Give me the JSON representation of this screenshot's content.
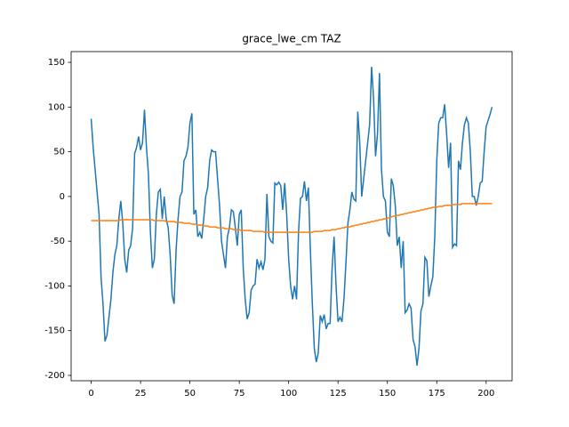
{
  "chart_data": {
    "type": "line",
    "title": "grace_lwe_cm TAZ",
    "x": [
      0,
      1,
      2,
      3,
      4,
      5,
      6,
      7,
      8,
      9,
      10,
      11,
      12,
      13,
      14,
      15,
      16,
      17,
      18,
      19,
      20,
      21,
      22,
      23,
      24,
      25,
      26,
      27,
      28,
      29,
      30,
      31,
      32,
      33,
      34,
      35,
      36,
      37,
      38,
      39,
      40,
      41,
      42,
      43,
      44,
      45,
      46,
      47,
      48,
      49,
      50,
      51,
      52,
      53,
      54,
      55,
      56,
      57,
      58,
      59,
      60,
      61,
      62,
      63,
      64,
      65,
      66,
      67,
      68,
      69,
      70,
      71,
      72,
      73,
      74,
      75,
      76,
      77,
      78,
      79,
      80,
      81,
      82,
      83,
      84,
      85,
      86,
      87,
      88,
      89,
      90,
      91,
      92,
      93,
      94,
      95,
      96,
      97,
      98,
      99,
      100,
      101,
      102,
      103,
      104,
      105,
      106,
      107,
      108,
      109,
      110,
      111,
      112,
      113,
      114,
      115,
      116,
      117,
      118,
      119,
      120,
      121,
      122,
      123,
      124,
      125,
      126,
      127,
      128,
      129,
      130,
      131,
      132,
      133,
      134,
      135,
      136,
      137,
      138,
      139,
      140,
      141,
      142,
      143,
      144,
      145,
      146,
      147,
      148,
      149,
      150,
      151,
      152,
      153,
      154,
      155,
      156,
      157,
      158,
      159,
      160,
      161,
      162,
      163,
      164,
      165,
      166,
      167,
      168,
      169,
      170,
      171,
      172,
      173,
      174,
      175,
      176,
      177,
      178,
      179,
      180,
      181,
      182,
      183,
      184,
      185,
      186,
      187,
      188,
      189,
      190,
      191,
      192,
      193,
      194,
      195,
      196,
      197,
      198,
      199,
      200,
      201,
      202,
      203
    ],
    "series": [
      {
        "color": "#1f77b4",
        "values": [
          87,
          55,
          30,
          5,
          -20,
          -90,
          -120,
          -162,
          -155,
          -135,
          -115,
          -85,
          -65,
          -55,
          -25,
          -5,
          -30,
          -70,
          -85,
          -60,
          -55,
          -35,
          48,
          55,
          67,
          52,
          60,
          97,
          55,
          25,
          -40,
          -80,
          -70,
          -20,
          5,
          8,
          -25,
          0,
          -25,
          -35,
          -65,
          -110,
          -120,
          -60,
          -25,
          0,
          5,
          40,
          45,
          55,
          82,
          93,
          -20,
          -15,
          -45,
          -40,
          -47,
          -25,
          0,
          10,
          40,
          52,
          50,
          50,
          20,
          -10,
          -50,
          -65,
          -80,
          -45,
          -35,
          -15,
          -17,
          -35,
          -55,
          -20,
          -15,
          -80,
          -115,
          -137,
          -130,
          -105,
          -100,
          -98,
          -70,
          -80,
          -73,
          -82,
          -70,
          3,
          -45,
          -50,
          -52,
          15,
          13,
          16,
          12,
          -15,
          15,
          -20,
          -70,
          -100,
          -115,
          -100,
          -115,
          -40,
          -2,
          0,
          17,
          -5,
          10,
          -60,
          -120,
          -170,
          -185,
          -175,
          -133,
          -140,
          -132,
          -148,
          -142,
          -142,
          -80,
          -45,
          -100,
          -140,
          -135,
          -140,
          -115,
          -75,
          -30,
          -15,
          5,
          -3,
          -5,
          95,
          60,
          0,
          20,
          40,
          60,
          80,
          145,
          110,
          45,
          70,
          138,
          30,
          0,
          -5,
          -40,
          -45,
          20,
          12,
          -10,
          -55,
          -45,
          -80,
          -50,
          -130,
          -127,
          -120,
          -125,
          -160,
          -168,
          -189,
          -170,
          -128,
          -120,
          -68,
          -72,
          -112,
          -100,
          -90,
          -45,
          40,
          82,
          88,
          88,
          103,
          70,
          32,
          60,
          -57,
          -53,
          -55,
          40,
          30,
          60,
          80,
          88,
          82,
          50,
          0,
          0,
          -10,
          0,
          15,
          17,
          50,
          78,
          85,
          92,
          100
        ]
      },
      {
        "color": "#ff7f0e",
        "values": [
          -27,
          -27,
          -27,
          -27,
          -27,
          -27,
          -27,
          -27,
          -27,
          -27,
          -27,
          -27,
          -27,
          -27,
          -27,
          -26,
          -26,
          -26,
          -26,
          -26,
          -26,
          -26,
          -26,
          -26,
          -26,
          -26,
          -26,
          -26,
          -26,
          -26,
          -26,
          -26,
          -27,
          -27,
          -27,
          -27,
          -27,
          -27,
          -28,
          -28,
          -28,
          -28,
          -28,
          -29,
          -29,
          -29,
          -29,
          -30,
          -30,
          -30,
          -30,
          -31,
          -31,
          -31,
          -32,
          -32,
          -32,
          -33,
          -33,
          -33,
          -34,
          -34,
          -34,
          -34,
          -35,
          -35,
          -35,
          -35,
          -36,
          -36,
          -36,
          -36,
          -37,
          -37,
          -37,
          -37,
          -38,
          -38,
          -38,
          -38,
          -38,
          -38,
          -39,
          -39,
          -39,
          -39,
          -39,
          -39,
          -40,
          -40,
          -40,
          -40,
          -40,
          -40,
          -40,
          -40,
          -40,
          -40,
          -40,
          -40,
          -40,
          -40,
          -40,
          -40,
          -40,
          -40,
          -40,
          -40,
          -40,
          -40,
          -40,
          -40,
          -40,
          -39,
          -39,
          -39,
          -39,
          -39,
          -38,
          -38,
          -38,
          -38,
          -37,
          -37,
          -37,
          -36,
          -36,
          -35,
          -35,
          -34,
          -34,
          -34,
          -33,
          -33,
          -32,
          -32,
          -31,
          -31,
          -30,
          -30,
          -29,
          -29,
          -28,
          -28,
          -27,
          -27,
          -26,
          -26,
          -25,
          -25,
          -24,
          -24,
          -23,
          -22,
          -22,
          -21,
          -21,
          -20,
          -20,
          -19,
          -19,
          -18,
          -18,
          -17,
          -17,
          -16,
          -16,
          -15,
          -15,
          -14,
          -14,
          -13,
          -13,
          -12,
          -12,
          -12,
          -11,
          -11,
          -11,
          -10,
          -10,
          -10,
          -10,
          -9,
          -9,
          -9,
          -9,
          -9,
          -8,
          -8,
          -8,
          -8,
          -8,
          -8,
          -8,
          -8,
          -8,
          -8,
          -8,
          -8,
          -8,
          -8,
          -8,
          -8
        ]
      }
    ],
    "xlim": [
      -10.15,
      213.15
    ],
    "ylim": [
      -206,
      162
    ],
    "xticks": [
      0,
      25,
      50,
      75,
      100,
      125,
      150,
      175,
      200
    ],
    "yticks": [
      -200,
      -150,
      -100,
      -50,
      0,
      50,
      100,
      150
    ]
  }
}
